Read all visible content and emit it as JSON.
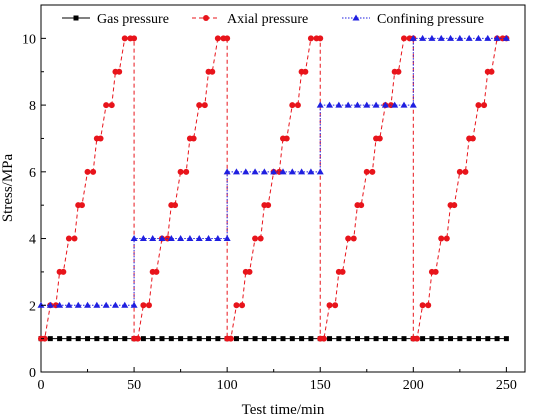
{
  "chart_data": {
    "type": "line",
    "xlabel": "Test time/min",
    "ylabel": "Stress/MPa",
    "xlim": [
      0,
      260
    ],
    "ylim": [
      0,
      11
    ],
    "xticks": [
      0,
      50,
      100,
      150,
      200,
      250
    ],
    "yticks": [
      0,
      2,
      4,
      6,
      8,
      10
    ],
    "legend_position": "top",
    "grid": false,
    "series": [
      {
        "name": "Gas pressure",
        "color": "#000000",
        "marker": "square",
        "line_style": "solid",
        "x": [
          0,
          5,
          10,
          15,
          20,
          25,
          30,
          35,
          40,
          45,
          50,
          55,
          60,
          65,
          70,
          75,
          80,
          85,
          90,
          95,
          100,
          105,
          110,
          115,
          120,
          125,
          130,
          135,
          140,
          145,
          150,
          155,
          160,
          165,
          170,
          175,
          180,
          185,
          190,
          195,
          200,
          205,
          210,
          215,
          220,
          225,
          230,
          235,
          240,
          245,
          250
        ],
        "y": [
          1,
          1,
          1,
          1,
          1,
          1,
          1,
          1,
          1,
          1,
          1,
          1,
          1,
          1,
          1,
          1,
          1,
          1,
          1,
          1,
          1,
          1,
          1,
          1,
          1,
          1,
          1,
          1,
          1,
          1,
          1,
          1,
          1,
          1,
          1,
          1,
          1,
          1,
          1,
          1,
          1,
          1,
          1,
          1,
          1,
          1,
          1,
          1,
          1,
          1,
          1
        ]
      },
      {
        "name": "Axial pressure",
        "color": "#e8141b",
        "marker": "circle",
        "line_style": "dashed",
        "x": [
          0,
          2,
          5,
          8,
          10,
          12,
          15,
          18,
          20,
          22,
          25,
          28,
          30,
          32,
          35,
          38,
          40,
          42,
          45,
          48,
          50,
          50,
          52,
          55,
          58,
          60,
          62,
          65,
          68,
          70,
          72,
          75,
          78,
          80,
          82,
          85,
          88,
          90,
          92,
          95,
          98,
          100,
          100,
          102,
          105,
          108,
          110,
          112,
          115,
          118,
          120,
          122,
          125,
          128,
          130,
          132,
          135,
          138,
          140,
          142,
          145,
          148,
          150,
          150,
          152,
          155,
          158,
          160,
          162,
          165,
          168,
          170,
          172,
          175,
          178,
          180,
          182,
          185,
          188,
          190,
          192,
          195,
          198,
          200,
          200,
          202,
          205,
          208,
          210,
          212,
          215,
          218,
          220,
          222,
          225,
          228,
          230,
          232,
          235,
          238,
          240,
          242,
          245,
          248,
          250
        ],
        "y": [
          1,
          1,
          2,
          2,
          3,
          3,
          4,
          4,
          5,
          5,
          6,
          6,
          7,
          7,
          8,
          8,
          9,
          9,
          10,
          10,
          10,
          1,
          1,
          2,
          2,
          3,
          3,
          4,
          4,
          5,
          5,
          6,
          6,
          7,
          7,
          8,
          8,
          9,
          9,
          10,
          10,
          10,
          1,
          1,
          2,
          2,
          3,
          3,
          4,
          4,
          5,
          5,
          6,
          6,
          7,
          7,
          8,
          8,
          9,
          9,
          10,
          10,
          10,
          1,
          1,
          2,
          2,
          3,
          3,
          4,
          4,
          5,
          5,
          6,
          6,
          7,
          7,
          8,
          8,
          9,
          9,
          10,
          10,
          10,
          1,
          1,
          2,
          2,
          3,
          3,
          4,
          4,
          5,
          5,
          6,
          6,
          7,
          7,
          8,
          8,
          9,
          9,
          10,
          10,
          10
        ]
      },
      {
        "name": "Confining pressure",
        "color": "#1f1fe0",
        "marker": "triangle",
        "line_style": "dotted",
        "x": [
          0,
          5,
          10,
          15,
          20,
          25,
          30,
          35,
          40,
          45,
          50,
          50,
          55,
          60,
          65,
          70,
          75,
          80,
          85,
          90,
          95,
          100,
          100,
          105,
          110,
          115,
          120,
          125,
          130,
          135,
          140,
          145,
          150,
          150,
          155,
          160,
          165,
          170,
          175,
          180,
          185,
          190,
          195,
          200,
          200,
          205,
          210,
          215,
          220,
          225,
          230,
          235,
          240,
          245,
          250
        ],
        "y": [
          2,
          2,
          2,
          2,
          2,
          2,
          2,
          2,
          2,
          2,
          2,
          4,
          4,
          4,
          4,
          4,
          4,
          4,
          4,
          4,
          4,
          4,
          6,
          6,
          6,
          6,
          6,
          6,
          6,
          6,
          6,
          6,
          6,
          8,
          8,
          8,
          8,
          8,
          8,
          8,
          8,
          8,
          8,
          8,
          10,
          10,
          10,
          10,
          10,
          10,
          10,
          10,
          10,
          10,
          10
        ]
      }
    ]
  }
}
